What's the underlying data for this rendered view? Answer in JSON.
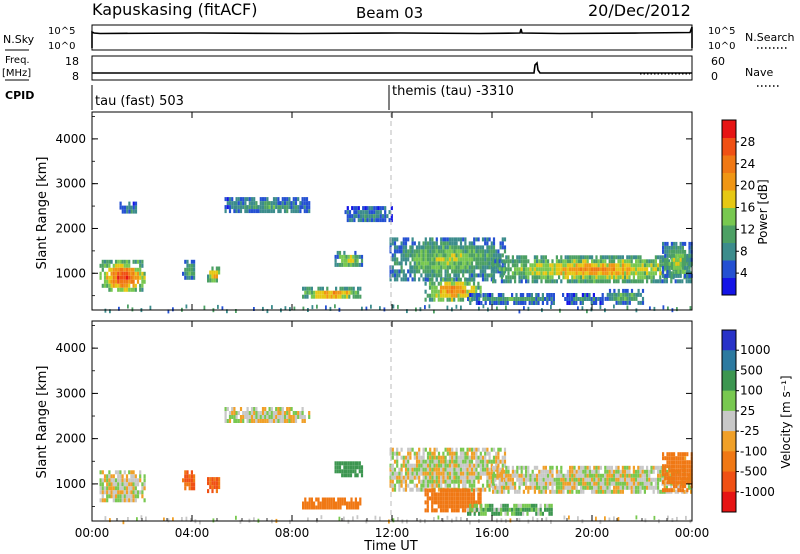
{
  "header": {
    "station": "Kapuskasing (fitACF)",
    "beam": "Beam 03",
    "date": "20/Dec/2012"
  },
  "status_panels": {
    "nsky_label": "N.Sky",
    "nsky_ticks": [
      "10^5",
      "10^0"
    ],
    "nsearch_label": "N.Search",
    "nsearch_ticks": [
      "10^5",
      "10^0"
    ],
    "freq_label": "Freq.",
    "freq_unit": "[MHz]",
    "freq_ticks": [
      "18",
      "8"
    ],
    "nave_label": "Nave",
    "nave_ticks": [
      "60",
      "0"
    ],
    "cpid_label": "CPID",
    "cpid_segments": [
      "tau (fast) 503",
      "themis (tau) -3310"
    ]
  },
  "power_colorbar": {
    "label": "Power [dB]",
    "ticks": [
      "28",
      "24",
      "20",
      "16",
      "12",
      "8",
      "4"
    ],
    "colors": [
      "#1414e6",
      "#2450d2",
      "#3c8c8c",
      "#4ca064",
      "#78c850",
      "#e6c814",
      "#f09614",
      "#f07814",
      "#f05014",
      "#e61414"
    ]
  },
  "velocity_colorbar": {
    "label": "Velocity [m s⁻¹]",
    "ticks": [
      "1000",
      "500",
      "100",
      "25",
      "-25",
      "-100",
      "-500",
      "-1000"
    ],
    "colors": [
      "#2832c8",
      "#2c7aa0",
      "#3c9650",
      "#78c850",
      "#c8c8c8",
      "#f0a028",
      "#f07814",
      "#f05014",
      "#e61414"
    ]
  },
  "xaxis": {
    "ticks": [
      "00:00",
      "04:00",
      "08:00",
      "12:00",
      "16:00",
      "20:00",
      "00:00"
    ],
    "label": "Time UT"
  },
  "chart_data": [
    {
      "type": "heatmap",
      "title": "Power",
      "ylabel": "Slant Range [km]",
      "ytick_labels": [
        "1000",
        "2000",
        "3000",
        "4000"
      ],
      "xlim_hours": [
        0,
        24
      ],
      "ylim_km": [
        180,
        4600
      ],
      "grid": false,
      "colorbar": "Power [dB]",
      "echo_regions": [
        {
          "t": [
            0.3,
            2.1
          ],
          "r": [
            620,
            1300
          ],
          "dB": 27
        },
        {
          "t": [
            1.1,
            1.8
          ],
          "r": [
            2350,
            2600
          ],
          "dB": 8
        },
        {
          "t": [
            3.6,
            4.1
          ],
          "r": [
            900,
            1300
          ],
          "dB": 14
        },
        {
          "t": [
            4.6,
            5.1
          ],
          "r": [
            850,
            1150
          ],
          "dB": 22
        },
        {
          "t": [
            5.3,
            8.7
          ],
          "r": [
            2350,
            2700
          ],
          "dB": 9
        },
        {
          "t": [
            8.4,
            10.7
          ],
          "r": [
            450,
            700
          ],
          "dB": 22
        },
        {
          "t": [
            9.7,
            10.8
          ],
          "r": [
            1150,
            1500
          ],
          "dB": 16
        },
        {
          "t": [
            10.1,
            12.0
          ],
          "r": [
            2150,
            2500
          ],
          "dB": 8
        },
        {
          "t": [
            11.9,
            16.5
          ],
          "r": [
            900,
            1800
          ],
          "dB": 14
        },
        {
          "t": [
            13.3,
            15.5
          ],
          "r": [
            400,
            900
          ],
          "dB": 22
        },
        {
          "t": [
            15.0,
            18.5
          ],
          "r": [
            380,
            560
          ],
          "dB": 10
        },
        {
          "t": [
            16.0,
            24.0
          ],
          "r": [
            850,
            1400
          ],
          "dB": 20
        },
        {
          "t": [
            18.8,
            20.5
          ],
          "r": [
            380,
            560
          ],
          "dB": 8
        },
        {
          "t": [
            20.5,
            22.0
          ],
          "r": [
            380,
            650
          ],
          "dB": 12
        },
        {
          "t": [
            22.8,
            24.0
          ],
          "r": [
            900,
            1700
          ],
          "dB": 14
        }
      ]
    },
    {
      "type": "heatmap",
      "title": "Velocity",
      "ylabel": "Slant Range [km]",
      "ytick_labels": [
        "1000",
        "2000",
        "3000",
        "4000"
      ],
      "xlim_hours": [
        0,
        24
      ],
      "ylim_km": [
        180,
        4600
      ],
      "grid": false,
      "colorbar": "Velocity [m s-1]",
      "echo_regions": [
        {
          "t": [
            0.3,
            2.1
          ],
          "r": [
            620,
            1300
          ],
          "v": 0
        },
        {
          "t": [
            3.6,
            4.1
          ],
          "r": [
            900,
            1300
          ],
          "v": -300
        },
        {
          "t": [
            4.6,
            5.1
          ],
          "r": [
            850,
            1150
          ],
          "v": -300
        },
        {
          "t": [
            5.3,
            8.7
          ],
          "r": [
            2350,
            2700
          ],
          "v": 0
        },
        {
          "t": [
            8.4,
            10.7
          ],
          "r": [
            450,
            700
          ],
          "v": -150
        },
        {
          "t": [
            9.7,
            10.8
          ],
          "r": [
            1150,
            1500
          ],
          "v": 150
        },
        {
          "t": [
            11.9,
            16.5
          ],
          "r": [
            900,
            1800
          ],
          "v": 0
        },
        {
          "t": [
            13.3,
            15.5
          ],
          "r": [
            400,
            900
          ],
          "v": -150
        },
        {
          "t": [
            15.0,
            18.5
          ],
          "r": [
            380,
            560
          ],
          "v": 60
        },
        {
          "t": [
            16.0,
            24.0
          ],
          "r": [
            850,
            1400
          ],
          "v": 0
        },
        {
          "t": [
            22.8,
            24.0
          ],
          "r": [
            900,
            1700
          ],
          "v": -120
        }
      ]
    }
  ]
}
